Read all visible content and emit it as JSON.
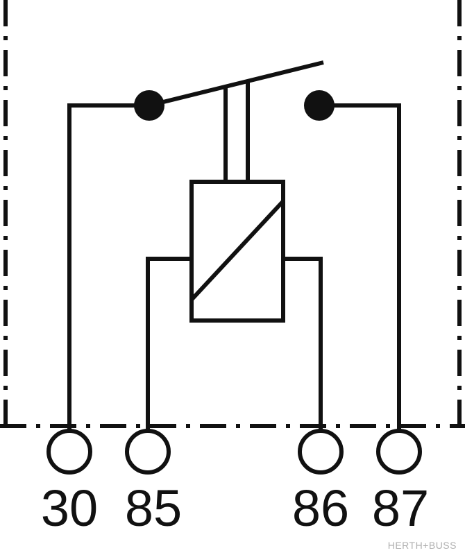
{
  "diagram": {
    "type": "relay-schematic",
    "line_color": "#111111",
    "pins": [
      {
        "id": "30",
        "label": "30"
      },
      {
        "id": "85",
        "label": "85"
      },
      {
        "id": "86",
        "label": "86"
      },
      {
        "id": "87",
        "label": "87"
      }
    ],
    "watermark": "HERTH+BUSS"
  }
}
